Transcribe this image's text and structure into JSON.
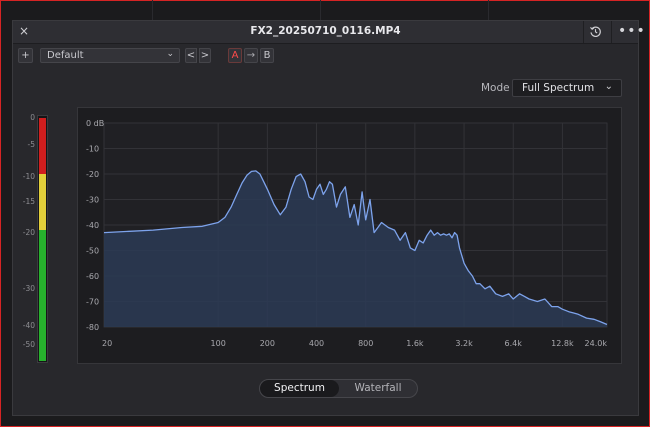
{
  "window": {
    "title": "FX2_20250710_0116.MP4",
    "close_glyph": "×",
    "more_glyph": "•••"
  },
  "toolbar": {
    "add_label": "+",
    "preset_value": "Default",
    "preset_chevron": "⌄",
    "prev_label": "<",
    "next_label": ">",
    "a_label": "A",
    "arrow_label": "→",
    "b_label": "B"
  },
  "mode": {
    "label": "Mode",
    "value": "Full Spectrum",
    "chevron": "⌄"
  },
  "meter": {
    "ticks": [
      "0",
      "-5",
      "-10",
      "-15",
      "-20",
      "-30",
      "-40",
      "-50"
    ],
    "colors": {
      "red": "#d01e1e",
      "yellow": "#e2cf3a",
      "green": "#27b12d"
    }
  },
  "tabs": {
    "spectrum": "Spectrum",
    "waterfall": "Waterfall",
    "active": "Spectrum"
  },
  "chart_data": {
    "type": "area",
    "xscale": "log",
    "xlabel": "",
    "ylabel": "",
    "xlim": [
      20,
      24000
    ],
    "ylim": [
      -80,
      0
    ],
    "x_ticks": [
      20,
      100,
      200,
      400,
      800,
      1600,
      3200,
      6400,
      12800,
      24000
    ],
    "x_tick_labels": [
      "20",
      "100",
      "200",
      "400",
      "800",
      "1.6k",
      "3.2k",
      "6.4k",
      "12.8k",
      "24.0k"
    ],
    "y_ticks": [
      0,
      -10,
      -20,
      -30,
      -40,
      -50,
      -60,
      -70,
      -80
    ],
    "y_tick_labels": [
      "0 dB",
      "-10",
      "-20",
      "-30",
      "-40",
      "-50",
      "-60",
      "-70",
      "-80"
    ],
    "grid": true,
    "colors": {
      "line": "#7da3ec",
      "fill": "#2b3b55"
    },
    "x": [
      20,
      40,
      60,
      80,
      100,
      110,
      120,
      130,
      140,
      150,
      160,
      170,
      180,
      190,
      200,
      220,
      240,
      260,
      280,
      300,
      320,
      340,
      360,
      380,
      400,
      420,
      440,
      460,
      480,
      500,
      530,
      560,
      600,
      640,
      680,
      720,
      760,
      800,
      850,
      900,
      950,
      1000,
      1100,
      1200,
      1300,
      1400,
      1500,
      1600,
      1700,
      1800,
      1900,
      2000,
      2100,
      2200,
      2300,
      2400,
      2500,
      2600,
      2700,
      2800,
      2900,
      3000,
      3200,
      3400,
      3600,
      3800,
      4000,
      4300,
      4600,
      5000,
      5500,
      6000,
      6400,
      7000,
      7500,
      8000,
      9000,
      10000,
      11000,
      12000,
      12800,
      14000,
      15000,
      16000,
      18000,
      20000,
      22000,
      24000
    ],
    "y": [
      -43,
      -42,
      -41,
      -40.5,
      -39,
      -37,
      -33,
      -28,
      -23.5,
      -20.5,
      -19,
      -18.8,
      -20,
      -23,
      -26,
      -32,
      -36,
      -33,
      -26,
      -21,
      -20,
      -23,
      -29,
      -30,
      -26,
      -24,
      -28,
      -26,
      -23,
      -24,
      -33,
      -28,
      -25,
      -37,
      -32,
      -40,
      -27,
      -38,
      -30,
      -43,
      -41,
      -39,
      -41,
      -42,
      -46,
      -43,
      -49,
      -50,
      -46,
      -47,
      -44,
      -42,
      -44,
      -43,
      -44,
      -43.5,
      -44,
      -43.5,
      -45,
      -43,
      -44,
      -49,
      -55,
      -58,
      -60,
      -63,
      -63,
      -65,
      -64,
      -67,
      -68,
      -67,
      -69,
      -67,
      -68,
      -69,
      -70,
      -69,
      -72,
      -72,
      -73,
      -74,
      -74.5,
      -75,
      -76.5,
      -77,
      -78,
      -79
    ]
  }
}
